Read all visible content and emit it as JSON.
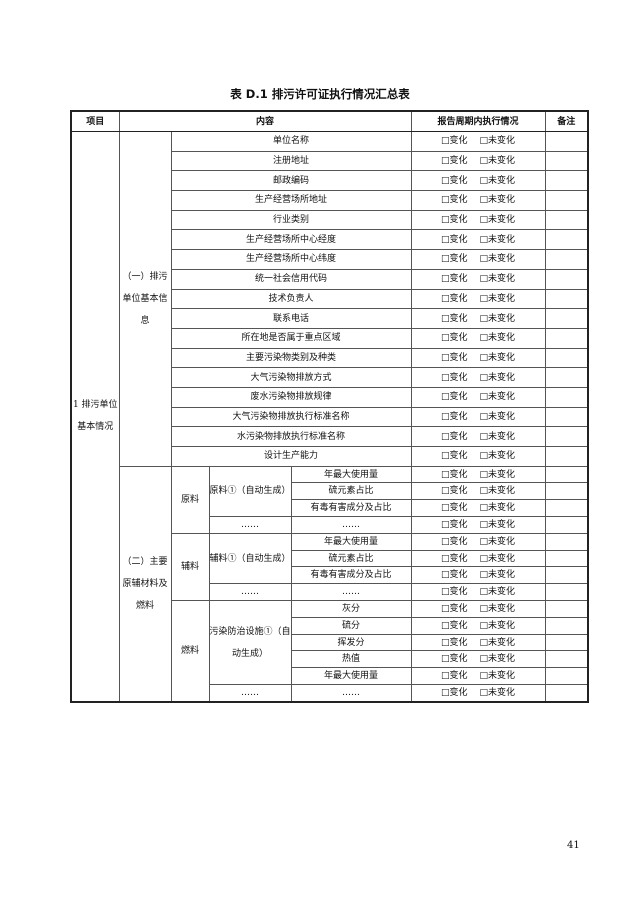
{
  "title": "表 D.1  排污许可证执行情况汇总表",
  "headers": {
    "item": "项目",
    "content": "内容",
    "status": "报告周期内执行情况",
    "remark": "备注"
  },
  "status_options": {
    "changed": "□变化",
    "unchanged": "□未变化"
  },
  "section_title": "1 排污单位基本情况",
  "basic_info": {
    "label": "（一）排污单位基本信息",
    "items": [
      "单位名称",
      "注册地址",
      "邮政编码",
      "生产经营场所地址",
      "行业类别",
      "生产经营场所中心经度",
      "生产经营场所中心纬度",
      "统一社会信用代码",
      "技术负责人",
      "联系电话",
      "所在地是否属于重点区域",
      "主要污染物类别及种类",
      "大气污染物排放方式",
      "废水污染物排放规律",
      "大气污染物排放执行标准名称",
      "水污染物排放执行标准名称",
      "设计生产能力"
    ]
  },
  "materials": {
    "label": "（二）主要原辅材料及燃料",
    "groups": [
      {
        "name": "原料",
        "sub": "原料①（自动生成）",
        "items": [
          "年最大使用量",
          "硫元素占比",
          "有毒有害成分及占比"
        ],
        "more_sub": "……",
        "more_item": "……"
      },
      {
        "name": "辅料",
        "sub": "辅料①（自动生成）",
        "items": [
          "年最大使用量",
          "硫元素占比",
          "有毒有害成分及占比"
        ],
        "more_sub": "……",
        "more_item": "……"
      },
      {
        "name": "燃料",
        "sub": "污染防治设施①（自动生成）",
        "items": [
          "灰分",
          "硫分",
          "挥发分",
          "热值",
          "年最大使用量"
        ],
        "more_sub": "……",
        "more_item": "……"
      }
    ]
  },
  "page_number": "41"
}
